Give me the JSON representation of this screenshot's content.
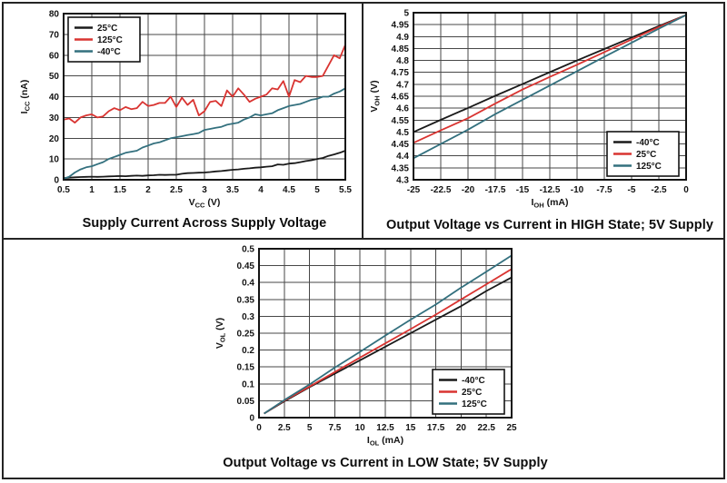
{
  "chart_data": [
    {
      "type": "line",
      "title": "Supply Current Across Supply Voltage",
      "xlabel": {
        "main": "V",
        "sub": "CC",
        "rest": " (V)"
      },
      "ylabel": {
        "main": "I",
        "sub": "CC",
        "rest": " (nA)"
      },
      "xlim": [
        0.5,
        5.5
      ],
      "ylim": [
        0,
        80
      ],
      "xticks": [
        0.5,
        1,
        1.5,
        2,
        2.5,
        3,
        3.5,
        4,
        4.5,
        5,
        5.5
      ],
      "yticks": [
        0,
        10,
        20,
        30,
        40,
        50,
        60,
        70,
        80
      ],
      "grid": true,
      "legend_position": "top-left",
      "series": [
        {
          "name": "25°C",
          "color": "#1a1a1a",
          "x": [
            0.5,
            0.6,
            0.7,
            0.8,
            0.9,
            1,
            1.1,
            1.2,
            1.3,
            1.4,
            1.5,
            1.6,
            1.7,
            1.8,
            1.9,
            2,
            2.1,
            2.2,
            2.3,
            2.4,
            2.5,
            2.6,
            2.7,
            2.8,
            2.9,
            3,
            3.1,
            3.2,
            3.3,
            3.4,
            3.5,
            3.6,
            3.7,
            3.8,
            3.9,
            4,
            4.1,
            4.2,
            4.3,
            4.4,
            4.5,
            4.6,
            4.7,
            4.8,
            4.9,
            5,
            5.1,
            5.2,
            5.3,
            5.4,
            5.5
          ],
          "y": [
            0.8,
            1,
            1.2,
            1.3,
            1.4,
            1.5,
            1.4,
            1.5,
            1.6,
            1.7,
            1.8,
            1.7,
            1.9,
            2,
            1.9,
            2.1,
            2.2,
            2.4,
            2.3,
            2.4,
            2.4,
            2.9,
            3.2,
            3.3,
            3.4,
            3.5,
            3.7,
            4,
            4.2,
            4.5,
            4.8,
            5,
            5.3,
            5.5,
            5.8,
            6,
            6.3,
            6.5,
            7.4,
            7.2,
            7.8,
            8,
            8.5,
            9,
            9.4,
            10,
            10.5,
            11.5,
            12.2,
            13,
            14
          ]
        },
        {
          "name": "125°C",
          "color": "#d93431",
          "x": [
            0.5,
            0.6,
            0.7,
            0.8,
            0.9,
            1,
            1.1,
            1.2,
            1.3,
            1.4,
            1.5,
            1.6,
            1.7,
            1.8,
            1.9,
            2,
            2.1,
            2.2,
            2.3,
            2.4,
            2.5,
            2.6,
            2.7,
            2.8,
            2.9,
            3,
            3.1,
            3.2,
            3.3,
            3.4,
            3.5,
            3.6,
            3.7,
            3.8,
            3.9,
            4,
            4.1,
            4.2,
            4.3,
            4.4,
            4.5,
            4.6,
            4.7,
            4.8,
            4.9,
            5,
            5.1,
            5.2,
            5.3,
            5.4,
            5.5
          ],
          "y": [
            29,
            29.5,
            27.5,
            30,
            31,
            31.5,
            30,
            30.5,
            33,
            34.5,
            33.5,
            35,
            34,
            34.5,
            37.5,
            35.5,
            36,
            37,
            37,
            40,
            35,
            39.5,
            36,
            38.5,
            31,
            33,
            37.5,
            38,
            35.5,
            43,
            40,
            44,
            41,
            37.5,
            39,
            40,
            41,
            44,
            43.5,
            47.5,
            40,
            48,
            47,
            50,
            49.5,
            49.5,
            50,
            55,
            60,
            58.5,
            65
          ]
        },
        {
          "name": "-40°C",
          "color": "#33707e",
          "x": [
            0.5,
            0.6,
            0.7,
            0.8,
            0.9,
            1,
            1.1,
            1.2,
            1.3,
            1.4,
            1.5,
            1.6,
            1.7,
            1.8,
            1.9,
            2,
            2.1,
            2.2,
            2.3,
            2.4,
            2.5,
            2.6,
            2.7,
            2.8,
            2.9,
            3,
            3.1,
            3.2,
            3.3,
            3.4,
            3.5,
            3.6,
            3.7,
            3.8,
            3.9,
            4,
            4.1,
            4.2,
            4.3,
            4.4,
            4.5,
            4.6,
            4.7,
            4.8,
            4.9,
            5,
            5.1,
            5.2,
            5.3,
            5.4,
            5.5
          ],
          "y": [
            0.5,
            1.5,
            3.5,
            5,
            6,
            6.5,
            7.5,
            8.5,
            10,
            11,
            12,
            13,
            13.5,
            14,
            15.5,
            16.5,
            17.5,
            18,
            19,
            20,
            20.5,
            21,
            21.5,
            22,
            22.5,
            24,
            24.5,
            25,
            25.5,
            26.5,
            27,
            27.5,
            29,
            30,
            31.5,
            31,
            31.5,
            32,
            33.5,
            34.5,
            35.5,
            36,
            36.5,
            37.5,
            38.5,
            39,
            40,
            40,
            41.5,
            42.5,
            44
          ]
        }
      ]
    },
    {
      "type": "line",
      "title": "Output Voltage vs Current in HIGH State; 5V Supply",
      "xlabel": {
        "main": "I",
        "sub": "OH",
        "rest": " (mA)"
      },
      "ylabel": {
        "main": "V",
        "sub": "OH",
        "rest": " (V)"
      },
      "xlim": [
        -25,
        0
      ],
      "ylim": [
        4.3,
        5
      ],
      "xticks": [
        -25,
        -22.5,
        -20,
        -17.5,
        -15,
        -12.5,
        -10,
        -7.5,
        -5,
        -2.5,
        0
      ],
      "yticks": [
        4.3,
        4.35,
        4.4,
        4.45,
        4.5,
        4.55,
        4.6,
        4.65,
        4.7,
        4.75,
        4.8,
        4.85,
        4.9,
        4.95,
        5
      ],
      "grid": true,
      "legend_position": "bottom-right",
      "series": [
        {
          "name": "-40°C",
          "color": "#1a1a1a",
          "x": [
            -25,
            -22.5,
            -20,
            -17.5,
            -15,
            -12.5,
            -10,
            -7.5,
            -5,
            -2.5,
            0
          ],
          "y": [
            4.5,
            4.551,
            4.601,
            4.652,
            4.701,
            4.751,
            4.8,
            4.848,
            4.896,
            4.944,
            4.99
          ]
        },
        {
          "name": "25°C",
          "color": "#d93431",
          "x": [
            -25,
            -22.5,
            -20,
            -17.5,
            -15,
            -12.5,
            -10,
            -7.5,
            -5,
            -2.5,
            0
          ],
          "y": [
            4.455,
            4.507,
            4.558,
            4.619,
            4.678,
            4.731,
            4.782,
            4.835,
            4.888,
            4.94,
            4.99
          ]
        },
        {
          "name": "125°C",
          "color": "#33707e",
          "x": [
            -25,
            -22.5,
            -20,
            -17.5,
            -15,
            -12.5,
            -10,
            -7.5,
            -5,
            -2.5,
            0
          ],
          "y": [
            4.39,
            4.45,
            4.51,
            4.575,
            4.635,
            4.695,
            4.755,
            4.815,
            4.874,
            4.933,
            4.99
          ]
        }
      ]
    },
    {
      "type": "line",
      "title": "Output Voltage vs Current in LOW State; 5V Supply",
      "xlabel": {
        "main": "I",
        "sub": "OL",
        "rest": " (mA)"
      },
      "ylabel": {
        "main": "V",
        "sub": "OL",
        "rest": " (V)"
      },
      "xlim": [
        0,
        25
      ],
      "ylim": [
        0,
        0.5
      ],
      "xticks": [
        0,
        2.5,
        5,
        7.5,
        10,
        12.5,
        15,
        17.5,
        20,
        22.5,
        25
      ],
      "yticks": [
        0,
        0.05,
        0.1,
        0.15,
        0.2,
        0.25,
        0.3,
        0.35,
        0.4,
        0.45,
        0.5
      ],
      "grid": true,
      "legend_position": "bottom-right",
      "series": [
        {
          "name": "-40°C",
          "color": "#1a1a1a",
          "x": [
            0.5,
            2.5,
            5,
            7.5,
            10,
            12.5,
            15,
            17.5,
            20,
            22.5,
            25
          ],
          "y": [
            0.012,
            0.048,
            0.09,
            0.13,
            0.17,
            0.21,
            0.25,
            0.29,
            0.33,
            0.375,
            0.415
          ]
        },
        {
          "name": "25°C",
          "color": "#d93431",
          "x": [
            0.5,
            2.5,
            5,
            7.5,
            10,
            12.5,
            15,
            17.5,
            20,
            22.5,
            25
          ],
          "y": [
            0.012,
            0.05,
            0.092,
            0.135,
            0.178,
            0.22,
            0.262,
            0.305,
            0.35,
            0.395,
            0.44
          ]
        },
        {
          "name": "125°C",
          "color": "#33707e",
          "x": [
            0.5,
            2.5,
            5,
            7.5,
            10,
            12.5,
            15,
            17.5,
            20,
            22.5,
            25
          ],
          "y": [
            0.012,
            0.052,
            0.098,
            0.148,
            0.195,
            0.243,
            0.29,
            0.335,
            0.385,
            0.432,
            0.48
          ]
        }
      ]
    }
  ]
}
